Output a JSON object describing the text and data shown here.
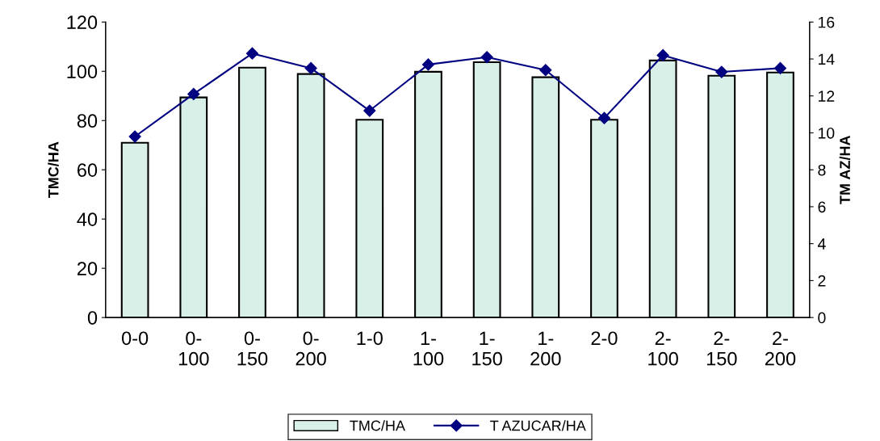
{
  "chart_data": {
    "type": "bar",
    "categories": [
      "0-0",
      "0-\n100",
      "0-\n150",
      "0-\n200",
      "1-0",
      "1-\n100",
      "1-\n150",
      "1-\n200",
      "2-0",
      "2-\n100",
      "2-\n150",
      "2-\n200"
    ],
    "series": [
      {
        "name": "TMC/HA",
        "color": "#d8f0e8",
        "values": [
          71,
          89.4,
          101.5,
          98.9,
          80.3,
          99.8,
          103.7,
          97.6,
          80.3,
          104.4,
          98.2,
          99.5
        ]
      },
      {
        "name": "T AZUCAR/HA",
        "type": "line",
        "axis": "y2",
        "color": "#000080",
        "marker": "diamond",
        "values": [
          9.8,
          12.1,
          14.3,
          13.5,
          11.2,
          13.7,
          14.1,
          13.4,
          10.8,
          14.2,
          13.3,
          13.5
        ]
      }
    ],
    "ylabel": "TMC/HA",
    "y2label": "TM AZ/HA",
    "ylim": [
      0,
      120
    ],
    "yticks": [
      0,
      20,
      40,
      60,
      80,
      100,
      120
    ],
    "y2lim": [
      0,
      16
    ],
    "y2ticks": [
      0,
      2,
      4,
      6,
      8,
      10,
      12,
      14,
      16
    ],
    "legend": "bottom",
    "grid": false
  }
}
